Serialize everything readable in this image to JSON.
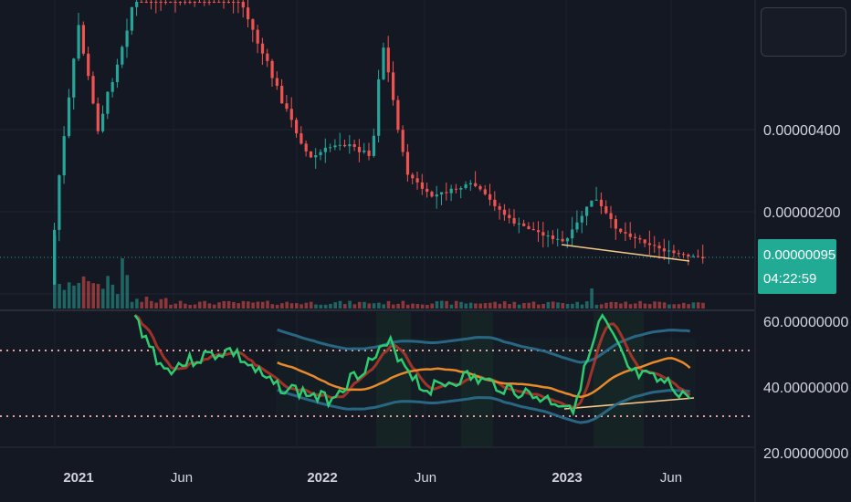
{
  "colors": {
    "background": "#141823",
    "up": "#26a69a",
    "down": "#ef5350",
    "badge": "#22ab94",
    "rsi_line": "#2ecc71",
    "rsi_ma": "#e8892b",
    "band": "#2a6f8f",
    "red_ma": "#c0392b",
    "trendline": "#f5c98a",
    "level_dots": "#e8a0a0"
  },
  "price_axis": {
    "labels": [
      "0.00000400",
      "0.00000200"
    ],
    "current_price": "0.00000095",
    "countdown": "04:22:59"
  },
  "rsi_axis": {
    "labels": [
      "60.00000000",
      "40.00000000",
      "20.00000000"
    ],
    "levels": [
      50,
      30
    ]
  },
  "time_axis": {
    "labels": [
      {
        "text": "2021",
        "year": true
      },
      {
        "text": "Jun",
        "year": false
      },
      {
        "text": "2022",
        "year": true
      },
      {
        "text": "Jun",
        "year": false
      },
      {
        "text": "2023",
        "year": true
      },
      {
        "text": "Jun",
        "year": false
      }
    ]
  },
  "chart_data": {
    "type": "candlestick",
    "timeframe": "weekly",
    "x_range": [
      "2020-12",
      "2023-07"
    ],
    "price_range": [
      0,
      9e-06
    ],
    "close_series": [
      [
        "2020-12-07",
        3e-07
      ],
      [
        "2020-12-21",
        2.9e-06
      ],
      [
        "2021-01-18",
        6.5e-06
      ],
      [
        "2021-02-15",
        4e-06
      ],
      [
        "2021-03-22",
        6e-06
      ],
      [
        "2021-05-03",
        8.7e-06
      ],
      [
        "2021-06-14",
        7.2e-06
      ],
      [
        "2021-08-09",
        8.3e-06
      ],
      [
        "2021-09-20",
        6.7e-06
      ],
      [
        "2021-11-15",
        4.5e-06
      ],
      [
        "2021-12-20",
        3.3e-06
      ],
      [
        "2022-01-31",
        3.7e-06
      ],
      [
        "2022-03-21",
        3.4e-06
      ],
      [
        "2022-04-04",
        6.2e-06
      ],
      [
        "2022-05-09",
        3e-06
      ],
      [
        "2022-06-13",
        2.4e-06
      ],
      [
        "2022-08-15",
        2.7e-06
      ],
      [
        "2022-10-10",
        1.8e-06
      ],
      [
        "2022-12-26",
        1.3e-06
      ],
      [
        "2023-02-06",
        2.4e-06
      ],
      [
        "2023-03-13",
        1.6e-06
      ],
      [
        "2023-05-22",
        1.1e-06
      ],
      [
        "2023-06-26",
        9.5e-07
      ]
    ],
    "current_price": 9.5e-07,
    "rsi": {
      "range": [
        20,
        65
      ],
      "levels": [
        50,
        30
      ],
      "points": [
        [
          "2021-04-05",
          60
        ],
        [
          "2021-05-17",
          44
        ],
        [
          "2021-07-12",
          48
        ],
        [
          "2021-08-23",
          50
        ],
        [
          "2021-10-18",
          40
        ],
        [
          "2022-01-10",
          35
        ],
        [
          "2022-04-11",
          52
        ],
        [
          "2022-05-30",
          38
        ],
        [
          "2022-08-01",
          42
        ],
        [
          "2022-11-07",
          36
        ],
        [
          "2023-01-02",
          33
        ],
        [
          "2023-02-13",
          60
        ],
        [
          "2023-03-27",
          43
        ],
        [
          "2023-05-15",
          40
        ],
        [
          "2023-06-26",
          35
        ]
      ]
    }
  }
}
